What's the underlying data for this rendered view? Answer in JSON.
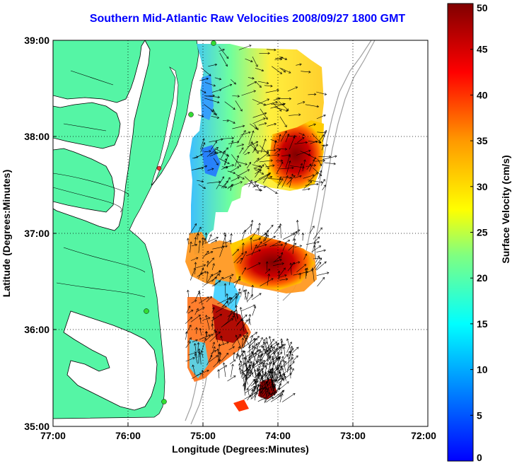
{
  "title": "Southern Mid-Atlantic Raw Velocities 2008/09/27 1800 GMT",
  "xlabel": "Longitude (Degrees:Minutes)",
  "ylabel": "Latitude (Degrees:Minutes)",
  "colorbar_label": "Surface Velocity (cm/s)",
  "x_ticks": [
    "77:00",
    "76:00",
    "75:00",
    "74:00",
    "73:00",
    "72:00"
  ],
  "y_ticks": [
    "39:00",
    "38:00",
    "37:00",
    "36:00",
    "35:00"
  ],
  "colorbar_ticks": [
    "50",
    "45",
    "40",
    "35",
    "30",
    "25",
    "20",
    "15",
    "10",
    "5",
    "0"
  ],
  "colors": {
    "land": "#55f5a5",
    "water_bg": "#ffffff",
    "coast": "#000000",
    "bathymetry": "#a0a0a0",
    "station": "#33dd33",
    "station_alt": "#ee3333"
  },
  "colorbar_range": [
    0,
    50
  ],
  "map_extent": {
    "lon": [
      -77,
      -72
    ],
    "lat": [
      35,
      39
    ]
  }
}
